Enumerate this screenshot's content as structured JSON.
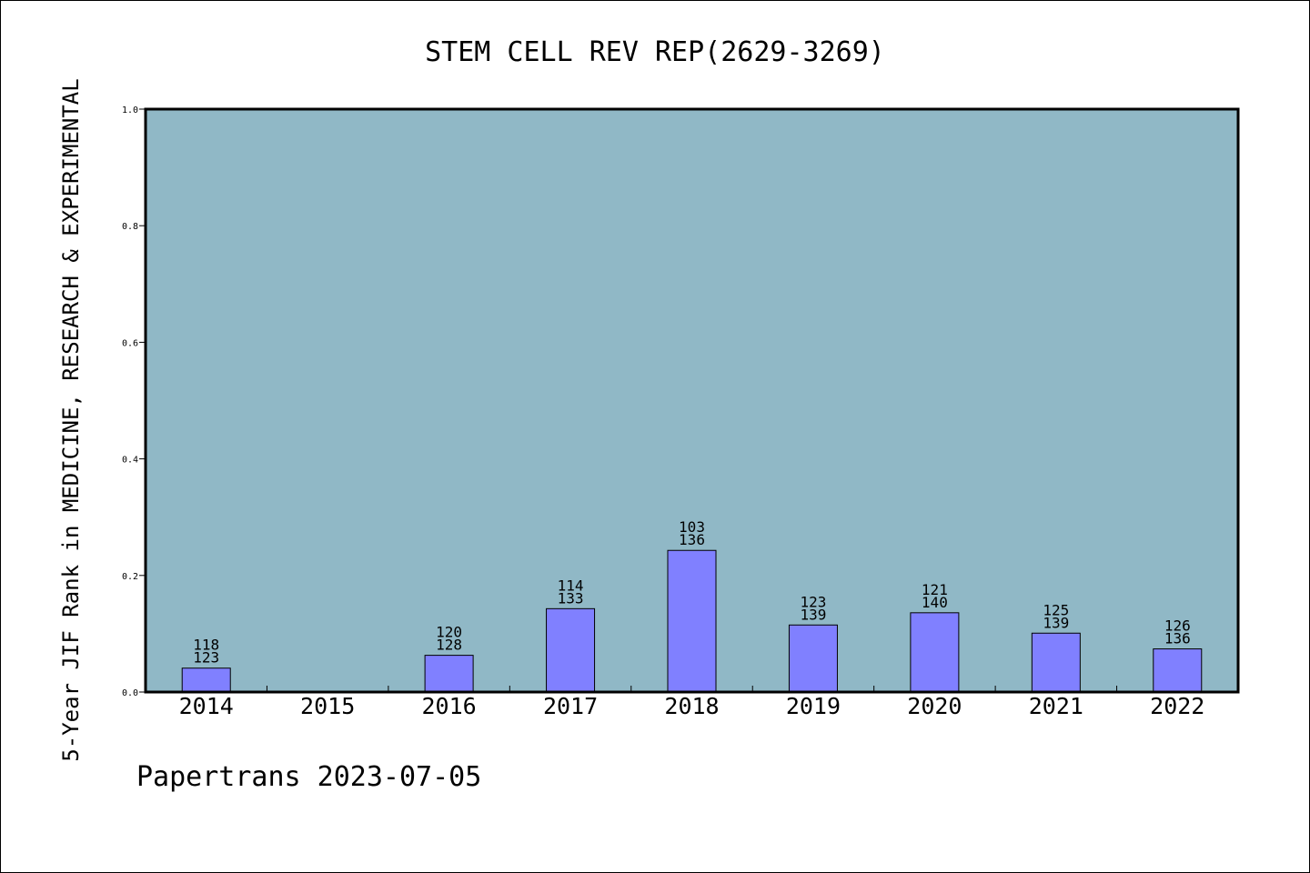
{
  "chart_data": {
    "type": "bar",
    "title": "STEM CELL REV REP(2629-3269)",
    "xlabel": "",
    "ylabel": "5-Year JIF Rank in MEDICINE, RESEARCH & EXPERIMENTAL",
    "categories": [
      "2014",
      "2015",
      "2016",
      "2017",
      "2018",
      "2019",
      "2020",
      "2021",
      "2022"
    ],
    "values": [
      0.041,
      0,
      0.063,
      0.143,
      0.243,
      0.115,
      0.136,
      0.101,
      0.074
    ],
    "labels_top": [
      "118",
      "",
      "120",
      "114",
      "103",
      "123",
      "121",
      "125",
      "126"
    ],
    "labels_bottom": [
      "123",
      "",
      "128",
      "133",
      "136",
      "139",
      "140",
      "139",
      "136"
    ],
    "ylim": [
      0,
      1.0
    ],
    "yticks": [
      "0.0",
      "0.2",
      "0.4",
      "0.6",
      "0.8",
      "1.0"
    ],
    "grid": false,
    "colors": {
      "bar": "#8080ff",
      "plot_background": "#90b8c6"
    }
  },
  "watermark": "Papertrans 2023-07-05"
}
